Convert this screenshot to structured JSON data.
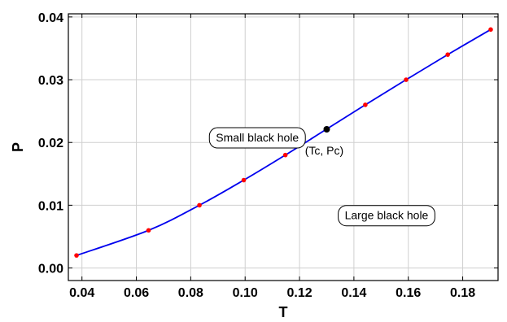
{
  "chart_data": {
    "type": "line",
    "title": "",
    "xlabel": "T",
    "ylabel": "P",
    "xlim": [
      0.035,
      0.193
    ],
    "ylim": [
      -0.002,
      0.0405
    ],
    "grid": true,
    "xticks": [
      0.04,
      0.06,
      0.08,
      0.1,
      0.12,
      0.14,
      0.16,
      0.18
    ],
    "xtick_labels": [
      "0.04",
      "0.06",
      "0.08",
      "0.10",
      "0.12",
      "0.14",
      "0.16",
      "0.18"
    ],
    "yticks": [
      0.0,
      0.01,
      0.02,
      0.03,
      0.04
    ],
    "ytick_labels": [
      "0.00",
      "0.01",
      "0.02",
      "0.03",
      "0.04"
    ],
    "curve": {
      "color": "#0000ee",
      "points": [
        [
          0.038,
          0.002
        ],
        [
          0.0645,
          0.006
        ],
        [
          0.0832,
          0.01
        ],
        [
          0.0995,
          0.014
        ],
        [
          0.1148,
          0.018
        ],
        [
          0.1295,
          0.022
        ],
        [
          0.1442,
          0.026
        ],
        [
          0.1592,
          0.03
        ],
        [
          0.1745,
          0.034
        ],
        [
          0.1903,
          0.038
        ]
      ]
    },
    "markers": {
      "color": "#ff0000",
      "points": [
        [
          0.038,
          0.002
        ],
        [
          0.0645,
          0.006
        ],
        [
          0.0832,
          0.01
        ],
        [
          0.0995,
          0.014
        ],
        [
          0.1148,
          0.018
        ],
        [
          0.1442,
          0.026
        ],
        [
          0.1592,
          0.03
        ],
        [
          0.1745,
          0.034
        ],
        [
          0.1903,
          0.038
        ]
      ]
    },
    "critical_point": {
      "T": 0.13,
      "P": 0.0221,
      "label": "(Tc, Pc)",
      "color": "#000000"
    },
    "annotations": [
      {
        "text": "Small black hole",
        "T": 0.1045,
        "P": 0.0208
      },
      {
        "text": "Large black hole",
        "T": 0.152,
        "P": 0.0084
      }
    ]
  }
}
